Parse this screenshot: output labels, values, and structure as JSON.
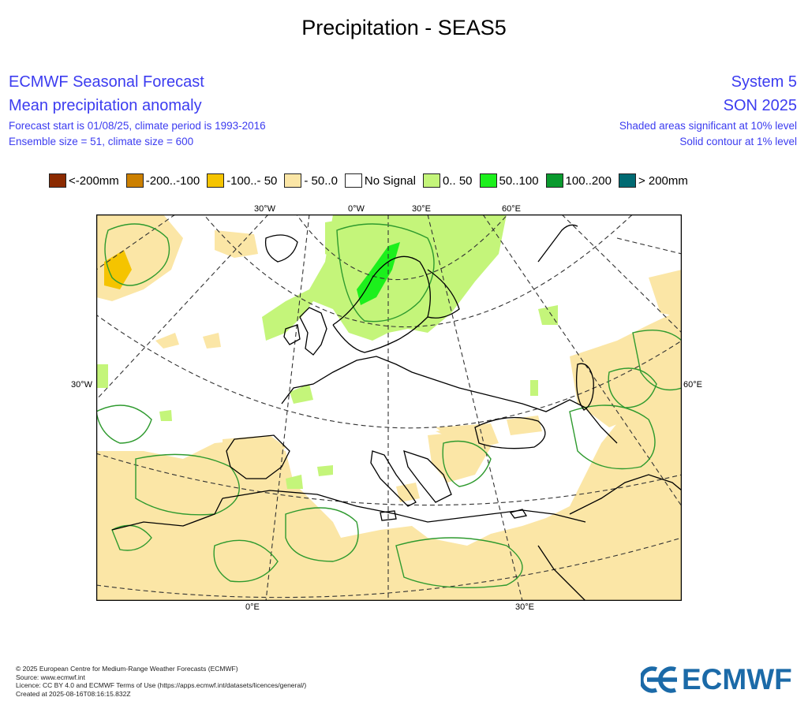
{
  "page_title": "Precipitation - SEAS5",
  "header": {
    "left": {
      "line1": "ECMWF Seasonal Forecast",
      "line2": "Mean precipitation anomaly",
      "line3": "Forecast start is 01/08/25, climate period is 1993-2016",
      "line4": "Ensemble size = 51, climate size = 600"
    },
    "right": {
      "line1": "System 5",
      "line2": "SON 2025",
      "line3": "Shaded areas significant at 10% level",
      "line4": "Solid contour at 1% level"
    }
  },
  "legend": [
    {
      "label": "<-200mm",
      "color": "#8b2a00"
    },
    {
      "label": "-200..-100",
      "color": "#cc8000"
    },
    {
      "label": "-100..- 50",
      "color": "#f5c400"
    },
    {
      "label": "- 50..0",
      "color": "#fbe6a6"
    },
    {
      "label": "No Signal",
      "color": "#ffffff"
    },
    {
      "label": "0.. 50",
      "color": "#c4f57a"
    },
    {
      "label": "50..100",
      "color": "#1cf01c"
    },
    {
      "label": "100..200",
      "color": "#0a9a2e"
    },
    {
      "label": "> 200mm",
      "color": "#006a72"
    }
  ],
  "map": {
    "top_ticks": [
      "30°W",
      "0°W",
      "30°E",
      "60°E"
    ],
    "bottom_ticks": [
      "0°E",
      "30°E"
    ],
    "left_tick": "30°W",
    "right_tick": "60°E",
    "colors": {
      "negative_light": "#fbe6a6",
      "negative_mid": "#f5c400",
      "positive_light": "#c4f57a",
      "positive_mid": "#1cf01c",
      "contour": "#2e9a2e",
      "coast": "#000000",
      "grid": "#333333"
    }
  },
  "footer": {
    "line1": "© 2025 European Centre for Medium-Range Weather Forecasts (ECMWF)",
    "line2": "Source: www.ecmwf.int",
    "line3": "Licence: CC BY 4.0 and ECMWF Terms of Use (https://apps.ecmwf.int/datasets/licences/general/)",
    "line4": "Created at 2025-08-16T08:16:15.832Z"
  },
  "logo": {
    "text": "ECMWF",
    "color": "#1b6aa8",
    "icon": "ecmwf-logo-icon"
  }
}
